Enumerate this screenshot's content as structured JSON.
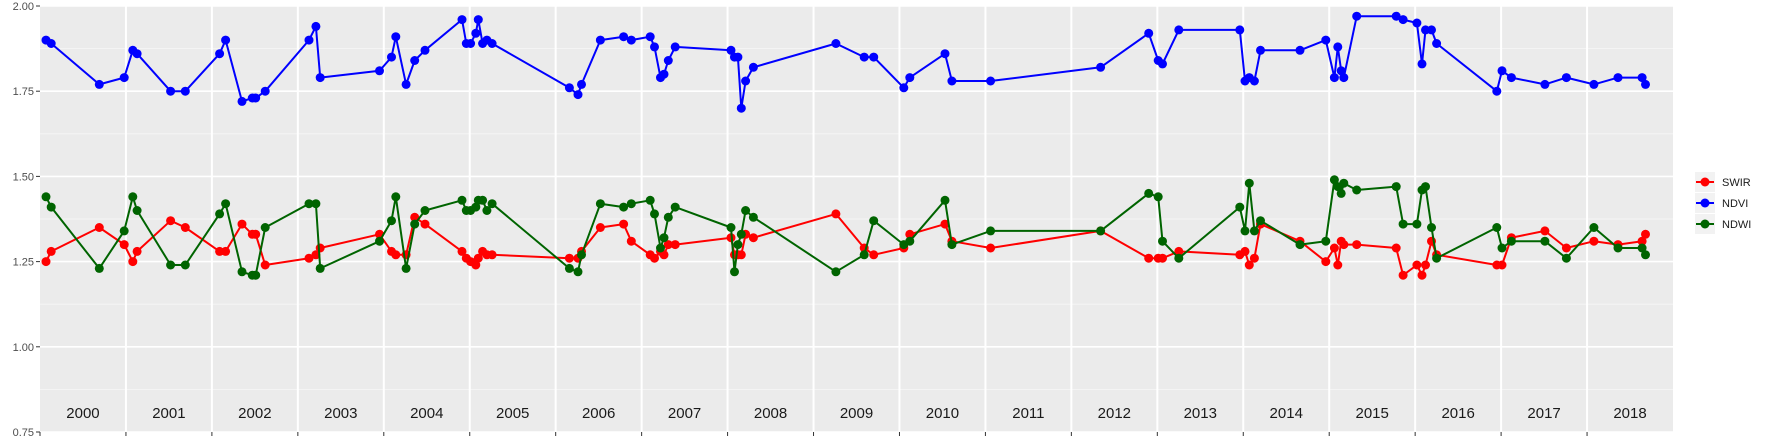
{
  "chart_data": {
    "type": "line",
    "title": "",
    "xlabel": "",
    "ylabel": "",
    "xlim": [
      2000,
      2019
    ],
    "ylim": [
      0.75,
      2.0
    ],
    "y_ticks": [
      "0.75",
      "1.00",
      "1.25",
      "1.50",
      "1.75",
      "2.00"
    ],
    "x_tick_labels": [
      "2000",
      "2001",
      "2002",
      "2003",
      "2004",
      "2005",
      "2006",
      "2007",
      "2008",
      "2009",
      "2010",
      "2011",
      "2012",
      "2013",
      "2014",
      "2015",
      "2016",
      "2017",
      "2018"
    ],
    "grid": true,
    "legend_position": "right",
    "series": [
      {
        "name": "SWIR",
        "color": "#ff0000",
        "x": [
          2000.07,
          2000.13,
          2000.69,
          2000.98,
          2001.08,
          2001.13,
          2001.52,
          2001.69,
          2002.09,
          2002.16,
          2002.35,
          2002.47,
          2002.51,
          2002.62,
          2003.13,
          2003.21,
          2003.26,
          2003.95,
          2004.09,
          2004.14,
          2004.26,
          2004.36,
          2004.48,
          2004.91,
          2004.96,
          2005.01,
          2005.07,
          2005.1,
          2005.15,
          2005.2,
          2005.26,
          2006.16,
          2006.26,
          2006.3,
          2006.52,
          2006.79,
          2006.88,
          2007.1,
          2007.15,
          2007.22,
          2007.26,
          2007.31,
          2007.39,
          2008.04,
          2008.08,
          2008.12,
          2008.16,
          2008.21,
          2008.3,
          2009.26,
          2009.59,
          2009.7,
          2010.05,
          2010.12,
          2010.53,
          2010.61,
          2011.06,
          2012.34,
          2012.9,
          2013.01,
          2013.06,
          2013.25,
          2013.96,
          2014.02,
          2014.07,
          2014.13,
          2014.2,
          2014.66,
          2014.96,
          2015.06,
          2015.1,
          2015.14,
          2015.17,
          2015.32,
          2015.78,
          2015.86,
          2016.02,
          2016.08,
          2016.12,
          2016.19,
          2016.25,
          2016.95,
          2017.01,
          2017.12,
          2017.51,
          2017.76,
          2018.08,
          2018.36,
          2018.64,
          2018.68
        ],
        "values": [
          1.25,
          1.28,
          1.35,
          1.3,
          1.25,
          1.28,
          1.37,
          1.35,
          1.28,
          1.28,
          1.36,
          1.33,
          1.33,
          1.24,
          1.26,
          1.27,
          1.29,
          1.33,
          1.28,
          1.27,
          1.27,
          1.38,
          1.36,
          1.28,
          1.26,
          1.25,
          1.24,
          1.26,
          1.28,
          1.27,
          1.27,
          1.26,
          1.26,
          1.28,
          1.35,
          1.36,
          1.31,
          1.27,
          1.26,
          1.28,
          1.27,
          1.3,
          1.3,
          1.32,
          1.27,
          1.27,
          1.27,
          1.33,
          1.32,
          1.39,
          1.29,
          1.27,
          1.29,
          1.33,
          1.36,
          1.31,
          1.29,
          1.34,
          1.26,
          1.26,
          1.26,
          1.28,
          1.27,
          1.28,
          1.24,
          1.26,
          1.36,
          1.31,
          1.25,
          1.29,
          1.24,
          1.31,
          1.3,
          1.3,
          1.29,
          1.21,
          1.24,
          1.21,
          1.24,
          1.31,
          1.27,
          1.24,
          1.24,
          1.32,
          1.34,
          1.29,
          1.31,
          1.3,
          1.31,
          1.33
        ]
      },
      {
        "name": "NDVI",
        "color": "#0000ff",
        "x": [
          2000.07,
          2000.13,
          2000.69,
          2000.98,
          2001.08,
          2001.13,
          2001.52,
          2001.69,
          2002.09,
          2002.16,
          2002.35,
          2002.47,
          2002.51,
          2002.62,
          2003.13,
          2003.21,
          2003.26,
          2003.95,
          2004.09,
          2004.14,
          2004.26,
          2004.36,
          2004.48,
          2004.91,
          2004.96,
          2005.01,
          2005.07,
          2005.1,
          2005.15,
          2005.2,
          2005.26,
          2006.16,
          2006.26,
          2006.3,
          2006.52,
          2006.79,
          2006.88,
          2007.1,
          2007.15,
          2007.22,
          2007.26,
          2007.31,
          2007.39,
          2008.04,
          2008.08,
          2008.12,
          2008.16,
          2008.21,
          2008.3,
          2009.26,
          2009.59,
          2009.7,
          2010.05,
          2010.12,
          2010.53,
          2010.61,
          2011.06,
          2012.34,
          2012.9,
          2013.01,
          2013.06,
          2013.25,
          2013.96,
          2014.02,
          2014.07,
          2014.13,
          2014.2,
          2014.66,
          2014.96,
          2015.06,
          2015.1,
          2015.14,
          2015.17,
          2015.32,
          2015.78,
          2015.86,
          2016.02,
          2016.08,
          2016.12,
          2016.19,
          2016.25,
          2016.95,
          2017.01,
          2017.12,
          2017.51,
          2017.76,
          2018.08,
          2018.36,
          2018.64,
          2018.68
        ],
        "values": [
          1.9,
          1.89,
          1.77,
          1.79,
          1.87,
          1.86,
          1.75,
          1.75,
          1.86,
          1.9,
          1.72,
          1.73,
          1.73,
          1.75,
          1.9,
          1.94,
          1.79,
          1.81,
          1.85,
          1.91,
          1.77,
          1.84,
          1.87,
          1.96,
          1.89,
          1.89,
          1.92,
          1.96,
          1.89,
          1.9,
          1.89,
          1.76,
          1.74,
          1.77,
          1.9,
          1.91,
          1.9,
          1.91,
          1.88,
          1.79,
          1.8,
          1.84,
          1.88,
          1.87,
          1.85,
          1.85,
          1.7,
          1.78,
          1.82,
          1.89,
          1.85,
          1.85,
          1.76,
          1.79,
          1.86,
          1.78,
          1.78,
          1.82,
          1.92,
          1.84,
          1.83,
          1.93,
          1.93,
          1.78,
          1.79,
          1.78,
          1.87,
          1.87,
          1.9,
          1.79,
          1.88,
          1.81,
          1.79,
          1.97,
          1.97,
          1.96,
          1.95,
          1.83,
          1.93,
          1.93,
          1.89,
          1.75,
          1.81,
          1.79,
          1.77,
          1.79,
          1.77,
          1.79,
          1.79,
          1.77
        ],
        "_note_": ""
      },
      {
        "name": "NDWI",
        "color": "#006400",
        "x": [
          2000.07,
          2000.13,
          2000.69,
          2000.98,
          2001.08,
          2001.13,
          2001.52,
          2001.69,
          2002.09,
          2002.16,
          2002.35,
          2002.47,
          2002.51,
          2002.62,
          2003.13,
          2003.21,
          2003.26,
          2003.95,
          2004.09,
          2004.14,
          2004.26,
          2004.36,
          2004.48,
          2004.91,
          2004.96,
          2005.01,
          2005.07,
          2005.1,
          2005.15,
          2005.2,
          2005.26,
          2006.16,
          2006.26,
          2006.3,
          2006.52,
          2006.79,
          2006.88,
          2007.1,
          2007.15,
          2007.22,
          2007.26,
          2007.31,
          2007.39,
          2008.04,
          2008.08,
          2008.12,
          2008.16,
          2008.21,
          2008.3,
          2009.26,
          2009.59,
          2009.7,
          2010.05,
          2010.12,
          2010.53,
          2010.61,
          2011.06,
          2012.34,
          2012.9,
          2013.01,
          2013.06,
          2013.25,
          2013.96,
          2014.02,
          2014.07,
          2014.13,
          2014.2,
          2014.66,
          2014.96,
          2015.06,
          2015.1,
          2015.14,
          2015.17,
          2015.32,
          2015.78,
          2015.86,
          2016.02,
          2016.08,
          2016.12,
          2016.19,
          2016.25,
          2016.95,
          2017.01,
          2017.12,
          2017.51,
          2017.76,
          2018.08,
          2018.36,
          2018.64,
          2018.68
        ],
        "values": [
          1.44,
          1.41,
          1.23,
          1.34,
          1.44,
          1.4,
          1.24,
          1.24,
          1.39,
          1.42,
          1.22,
          1.21,
          1.21,
          1.35,
          1.42,
          1.42,
          1.23,
          1.31,
          1.37,
          1.44,
          1.23,
          1.36,
          1.4,
          1.43,
          1.4,
          1.4,
          1.41,
          1.43,
          1.43,
          1.4,
          1.42,
          1.23,
          1.22,
          1.27,
          1.42,
          1.41,
          1.42,
          1.43,
          1.39,
          1.29,
          1.32,
          1.38,
          1.41,
          1.35,
          1.22,
          1.3,
          1.33,
          1.4,
          1.38,
          1.22,
          1.27,
          1.37,
          1.3,
          1.31,
          1.43,
          1.3,
          1.34,
          1.34,
          1.45,
          1.44,
          1.31,
          1.26,
          1.41,
          1.34,
          1.48,
          1.34,
          1.37,
          1.3,
          1.31,
          1.49,
          1.47,
          1.45,
          1.48,
          1.46,
          1.47,
          1.36,
          1.36,
          1.46,
          1.47,
          1.35,
          1.26,
          1.35,
          1.29,
          1.31,
          1.31,
          1.26,
          1.35,
          1.29,
          1.29,
          1.27
        ]
      }
    ]
  }
}
